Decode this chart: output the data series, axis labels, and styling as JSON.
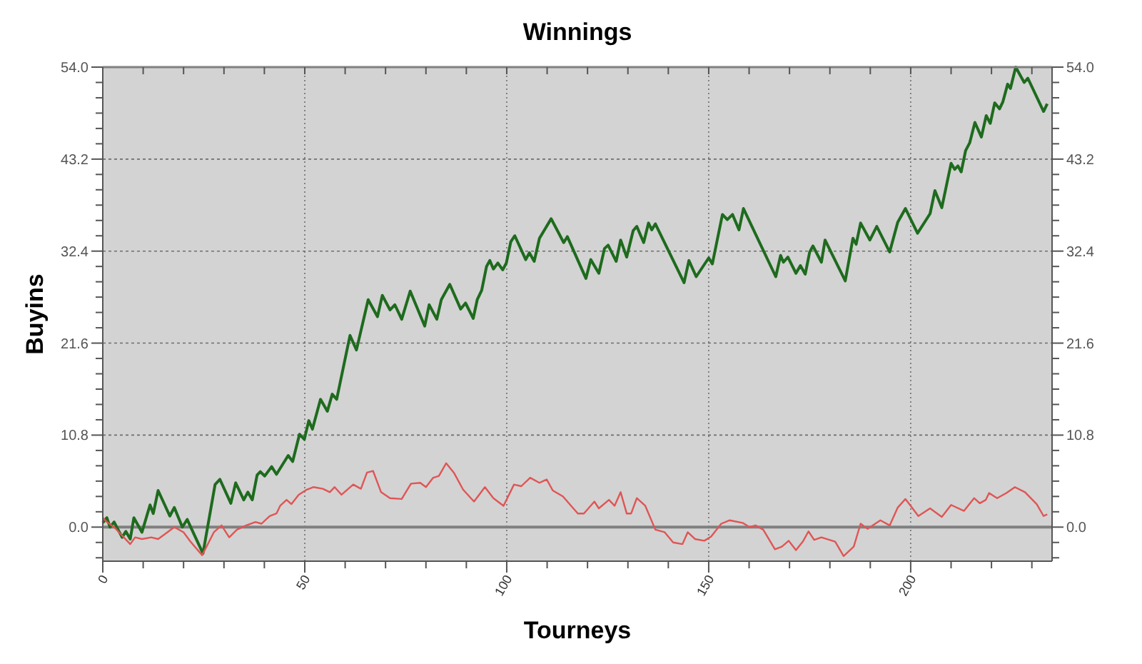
{
  "chart_data": {
    "type": "line",
    "title": "Winnings",
    "xlabel": "Tourneys",
    "ylabel": "Buyins",
    "xlim": [
      0,
      235
    ],
    "xticks": [
      0,
      {
        "value": 10,
        "label": null
      },
      {
        "value": 20,
        "label": null
      },
      {
        "value": 30,
        "label": null
      },
      {
        "value": 40,
        "label": null
      },
      50,
      {
        "value": 60,
        "label": null
      },
      {
        "value": 70,
        "label": null
      },
      {
        "value": 80,
        "label": null
      },
      {
        "value": 90,
        "label": null
      },
      100,
      {
        "value": 110,
        "label": null
      },
      {
        "value": 120,
        "label": null
      },
      {
        "value": 130,
        "label": null
      },
      {
        "value": 140,
        "label": null
      },
      150,
      {
        "value": 160,
        "label": null
      },
      {
        "value": 170,
        "label": null
      },
      {
        "value": 180,
        "label": null
      },
      {
        "value": 190,
        "label": null
      },
      200,
      {
        "value": 210,
        "label": null
      },
      {
        "value": 220,
        "label": null
      },
      {
        "value": 230,
        "label": null
      }
    ],
    "ylim": [
      -4,
      54
    ],
    "yticks": [
      {
        "value": -3.6,
        "label": null
      },
      {
        "value": -1.8,
        "label": null
      },
      {
        "value": 0,
        "label": "0.0"
      },
      {
        "value": 1.8,
        "label": null
      },
      {
        "value": 3.6,
        "label": null
      },
      {
        "value": 5.4,
        "label": null
      },
      {
        "value": 7.2,
        "label": null
      },
      {
        "value": 9,
        "label": null
      },
      10.8,
      {
        "value": 12.6,
        "label": null
      },
      {
        "value": 14.4,
        "label": null
      },
      {
        "value": 16.2,
        "label": null
      },
      {
        "value": 18,
        "label": null
      },
      {
        "value": 19.8,
        "label": null
      },
      21.6,
      {
        "value": 23.4,
        "label": null
      },
      {
        "value": 25.2,
        "label": null
      },
      {
        "value": 27,
        "label": null
      },
      {
        "value": 28.8,
        "label": null
      },
      {
        "value": 30.6,
        "label": null
      },
      32.4,
      {
        "value": 34.2,
        "label": null
      },
      {
        "value": 36,
        "label": null
      },
      {
        "value": 37.8,
        "label": null
      },
      {
        "value": 39.6,
        "label": null
      },
      {
        "value": 41.4,
        "label": null
      },
      43.2,
      {
        "value": 45,
        "label": null
      },
      {
        "value": 46.8,
        "label": null
      },
      {
        "value": 48.6,
        "label": null
      },
      {
        "value": 50.4,
        "label": null
      },
      {
        "value": 52.2,
        "label": null
      },
      {
        "value": 54,
        "label": "54.0"
      }
    ],
    "y2lim": [
      -4,
      54
    ],
    "y2ticks": [
      {
        "value": 0,
        "label": "0.0"
      },
      10.8,
      21.6,
      32.4,
      43.2,
      {
        "value": 54,
        "label": "54.0"
      }
    ],
    "grid": true,
    "marker": "none",
    "line_style": "solid",
    "ref_lines": [
      {
        "axis": "y",
        "value": 0,
        "color": "#808080"
      }
    ],
    "series": [
      {
        "color": "#1e6b1e",
        "x": [
          0,
          1,
          1.8,
          2.8,
          4.8,
          5.7,
          6.8,
          7.7,
          9.7,
          11.7,
          12.5,
          13.7,
          16.6,
          17.7,
          19.7,
          20.9,
          24.8,
          27.8,
          29,
          31.7,
          32.9,
          34.9,
          35.9,
          37,
          38.2,
          39,
          40.1,
          41.8,
          43,
          45.9,
          47,
          48.7,
          49.9,
          51,
          51.9,
          53.9,
          55.6,
          56.8,
          57.9,
          61.2,
          62.8,
          65.7,
          68,
          69.2,
          71.1,
          72.3,
          74,
          76.1,
          79.7,
          80.8,
          82.7,
          83.8,
          85.9,
          88.6,
          89.8,
          91.7,
          92.7,
          93.8,
          95,
          95.8,
          96.7,
          97.8,
          99,
          99.9,
          101,
          102,
          104.7,
          105.6,
          106.8,
          108.1,
          111,
          114.1,
          115,
          119.6,
          120.8,
          122.8,
          124.2,
          125.1,
          127.1,
          128.2,
          129.7,
          131.3,
          132.2,
          133.9,
          135.1,
          135.9,
          136.8,
          143.9,
          145.1,
          146.9,
          150,
          150.9,
          153.4,
          154.6,
          155.9,
          157.5,
          158.6,
          166.6,
          167.8,
          168.5,
          169.6,
          171.6,
          172.7,
          173.9,
          175,
          175.8,
          177.9,
          178.8,
          183.8,
          185.7,
          186.5,
          187.6,
          189.9,
          191.6,
          194.8,
          196.8,
          198.7,
          201.7,
          204.8,
          206,
          207.7,
          210,
          210.9,
          211.7,
          212.5,
          213.6,
          214.6,
          215.9,
          217.5,
          218.7,
          219.7,
          220.8,
          222,
          222.8,
          224,
          224.7,
          226,
          228.1,
          229,
          232.9,
          233.8
        ],
        "values": [
          0.5,
          1.1,
          0,
          0.6,
          -1.2,
          -0.5,
          -1.4,
          1.1,
          -0.6,
          2.6,
          1.6,
          4.3,
          1.3,
          2.3,
          0,
          0.9,
          -3.1,
          5,
          5.6,
          2.8,
          5.2,
          3.2,
          4.1,
          3.2,
          6.1,
          6.5,
          6,
          7.1,
          6.2,
          8.4,
          7.7,
          10.9,
          10.3,
          12.5,
          11.5,
          15,
          13.6,
          15.6,
          15,
          22.5,
          20.8,
          26.7,
          24.7,
          27.2,
          25.5,
          26.1,
          24.4,
          27.7,
          23.6,
          26.1,
          24.4,
          26.7,
          28.5,
          25.6,
          26.3,
          24.5,
          26.7,
          27.8,
          30.6,
          31.3,
          30.3,
          31,
          30.2,
          31,
          33.5,
          34.2,
          31.4,
          32.2,
          31.2,
          33.9,
          36.2,
          33.4,
          34.1,
          29.2,
          31.4,
          29.8,
          32.7,
          33.1,
          31.2,
          33.7,
          31.7,
          34.8,
          35.3,
          33.4,
          35.7,
          34.9,
          35.6,
          28.7,
          31.3,
          29.4,
          31.6,
          30.9,
          36.7,
          36.1,
          36.7,
          34.9,
          37.4,
          29.4,
          31.9,
          31.1,
          31.7,
          29.8,
          30.7,
          29.7,
          32.3,
          33,
          31.1,
          33.7,
          28.9,
          33.9,
          33.2,
          35.7,
          33.7,
          35.3,
          32.3,
          35.8,
          37.4,
          34.5,
          36.8,
          39.5,
          37.5,
          42.7,
          42,
          42.4,
          41.7,
          44.2,
          45.1,
          47.5,
          45.8,
          48.3,
          47.4,
          49.8,
          49.1,
          49.9,
          52,
          51.5,
          54,
          52.2,
          52.7,
          48.8,
          49.7
        ]
      },
      {
        "color": "#e05555",
        "x": [
          0,
          1,
          2.8,
          6.8,
          8,
          9.7,
          12,
          13.7,
          16,
          17.7,
          20,
          21.7,
          24.6,
          27.5,
          29.4,
          31.3,
          33.2,
          35.5,
          37.8,
          39.3,
          41.3,
          43,
          43.9,
          45.5,
          46.7,
          48.5,
          50.5,
          52.2,
          54.5,
          56.2,
          57.4,
          59.1,
          62,
          63.9,
          65.4,
          66.9,
          68.9,
          71.1,
          74,
          76.3,
          78.6,
          80,
          81.8,
          83.2,
          85,
          86.9,
          89.2,
          91.9,
          94.6,
          96.7,
          99.2,
          101.8,
          103.6,
          105.8,
          108.1,
          109.9,
          111.4,
          113.9,
          117.6,
          119.1,
          121.7,
          122.8,
          125.3,
          126.7,
          128.2,
          129.7,
          130.8,
          132.2,
          134.3,
          136.8,
          139.1,
          141.2,
          143.5,
          144.8,
          146.6,
          148.9,
          150.6,
          153.1,
          155.2,
          158.4,
          160.1,
          161.6,
          163.5,
          166.4,
          168.1,
          169.8,
          171.6,
          173.3,
          174.7,
          176.1,
          177.9,
          181.3,
          183.4,
          185.9,
          187.6,
          189.3,
          192.5,
          194.8,
          196.8,
          198.7,
          201.9,
          204.8,
          207.7,
          210,
          213.2,
          215.7,
          217.1,
          218.6,
          219.4,
          221.4,
          223.7,
          225.8,
          228.3,
          231.2,
          232.9,
          233.8
        ],
        "values": [
          1.1,
          0.6,
          0,
          -2,
          -1.2,
          -1.4,
          -1.2,
          -1.4,
          -0.6,
          0,
          -0.6,
          -1.7,
          -3.3,
          -0.6,
          0.2,
          -1.2,
          -0.3,
          0.2,
          0.6,
          0.4,
          1.3,
          1.6,
          2.5,
          3.2,
          2.7,
          3.8,
          4.4,
          4.7,
          4.5,
          4.1,
          4.7,
          3.8,
          5,
          4.5,
          6.4,
          6.6,
          4.1,
          3.4,
          3.3,
          5.1,
          5.2,
          4.7,
          5.8,
          6,
          7.5,
          6.4,
          4.4,
          3,
          4.7,
          3.4,
          2.5,
          5,
          4.8,
          5.8,
          5.2,
          5.6,
          4.3,
          3.6,
          1.6,
          1.6,
          3,
          2.2,
          3.2,
          2.5,
          4.1,
          1.6,
          1.6,
          3.4,
          2.5,
          -0.3,
          -0.6,
          -1.8,
          -2,
          -0.6,
          -1.4,
          -1.6,
          -1.1,
          0.4,
          0.8,
          0.5,
          0,
          0.2,
          -0.3,
          -2.6,
          -2.3,
          -1.6,
          -2.7,
          -1.7,
          -0.5,
          -1.5,
          -1.2,
          -1.7,
          -3.4,
          -2.3,
          0.4,
          -0.2,
          0.8,
          0.2,
          2.3,
          3.3,
          1.3,
          2.2,
          1.2,
          2.6,
          1.9,
          3.4,
          2.8,
          3.2,
          4,
          3.4,
          4,
          4.7,
          4.1,
          2.7,
          1.3,
          1.5
        ]
      }
    ]
  }
}
